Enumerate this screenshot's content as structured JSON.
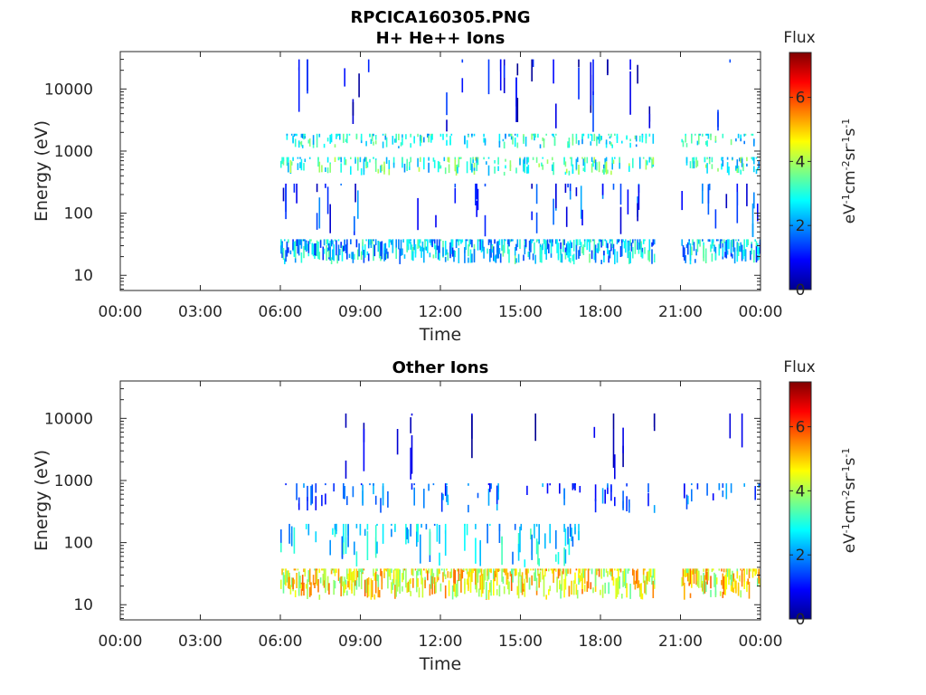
{
  "figure": {
    "title_line1": "RPCICA160305.PNG"
  },
  "chart_data": [
    {
      "type": "heatmap",
      "title": "H+ He++ Ions",
      "xlabel": "Time",
      "ylabel": "Energy (eV)",
      "x_ticks": [
        "00:00",
        "03:00",
        "06:00",
        "09:00",
        "12:00",
        "15:00",
        "18:00",
        "21:00",
        "00:00"
      ],
      "x_range_hours": [
        0,
        24
      ],
      "y_scale": "log",
      "y_range": [
        5.7,
        40000
      ],
      "y_ticks": [
        {
          "value": 10,
          "label": "10"
        },
        {
          "value": 100,
          "label": "100"
        },
        {
          "value": 1000,
          "label": "1000"
        },
        {
          "value": 10000,
          "label": "10000"
        }
      ],
      "data_gaps_hours": [
        [
          0,
          6.0
        ],
        [
          20.0,
          21.0
        ]
      ],
      "bands": [
        {
          "e_low": 15,
          "e_high": 38,
          "density": 0.85,
          "flux_mean": 2.4,
          "flux_spread": 1.2,
          "t_start": 6.0,
          "t_end": 24
        },
        {
          "e_low": 400,
          "e_high": 800,
          "density": 0.45,
          "flux_mean": 3.0,
          "flux_spread": 1.2,
          "t_start": 6.0,
          "t_end": 24
        },
        {
          "e_low": 1100,
          "e_high": 1900,
          "density": 0.4,
          "flux_mean": 2.8,
          "flux_spread": 1.0,
          "t_start": 6.0,
          "t_end": 24
        },
        {
          "e_low": 40,
          "e_high": 300,
          "density": 0.12,
          "flux_mean": 1.3,
          "flux_spread": 0.9,
          "t_start": 6.0,
          "t_end": 24
        },
        {
          "e_low": 2000,
          "e_high": 30000,
          "density": 0.06,
          "flux_mean": 0.8,
          "flux_spread": 0.7,
          "t_start": 6.0,
          "t_end": 24
        }
      ],
      "colorbar": {
        "label": "Flux",
        "unit_label": "eV-1cm-2sr-1s-1",
        "range": [
          0,
          7.4
        ],
        "ticks": [
          "0",
          "2",
          "4",
          "6"
        ],
        "tick_values": [
          0,
          2,
          4,
          6
        ],
        "colormap": "jet"
      }
    },
    {
      "type": "heatmap",
      "title": "Other Ions",
      "xlabel": "Time",
      "ylabel": "Energy (eV)",
      "x_ticks": [
        "00:00",
        "03:00",
        "06:00",
        "09:00",
        "12:00",
        "15:00",
        "18:00",
        "21:00",
        "00:00"
      ],
      "x_range_hours": [
        0,
        24
      ],
      "y_scale": "log",
      "y_range": [
        5.7,
        40000
      ],
      "y_ticks": [
        {
          "value": 10,
          "label": "10"
        },
        {
          "value": 100,
          "label": "100"
        },
        {
          "value": 1000,
          "label": "1000"
        },
        {
          "value": 10000,
          "label": "10000"
        }
      ],
      "data_gaps_hours": [
        [
          0,
          6.0
        ],
        [
          20.0,
          21.0
        ]
      ],
      "bands": [
        {
          "e_low": 12,
          "e_high": 38,
          "density": 0.95,
          "flux_mean": 4.6,
          "flux_spread": 1.2,
          "t_start": 6.0,
          "t_end": 24
        },
        {
          "e_low": 40,
          "e_high": 200,
          "density": 0.3,
          "flux_mean": 2.5,
          "flux_spread": 0.9,
          "t_start": 6.0,
          "t_end": 17.5
        },
        {
          "e_low": 300,
          "e_high": 900,
          "density": 0.2,
          "flux_mean": 1.6,
          "flux_spread": 0.8,
          "t_start": 6.0,
          "t_end": 24
        },
        {
          "e_low": 1000,
          "e_high": 12000,
          "density": 0.05,
          "flux_mean": 0.6,
          "flux_spread": 0.5,
          "t_start": 6.0,
          "t_end": 24
        }
      ],
      "colorbar": {
        "label": "Flux",
        "unit_label": "eV-1cm-2sr-1s-1",
        "range": [
          0,
          7.4
        ],
        "ticks": [
          "0",
          "2",
          "4",
          "6"
        ],
        "tick_values": [
          0,
          2,
          4,
          6
        ],
        "colormap": "jet"
      }
    }
  ]
}
